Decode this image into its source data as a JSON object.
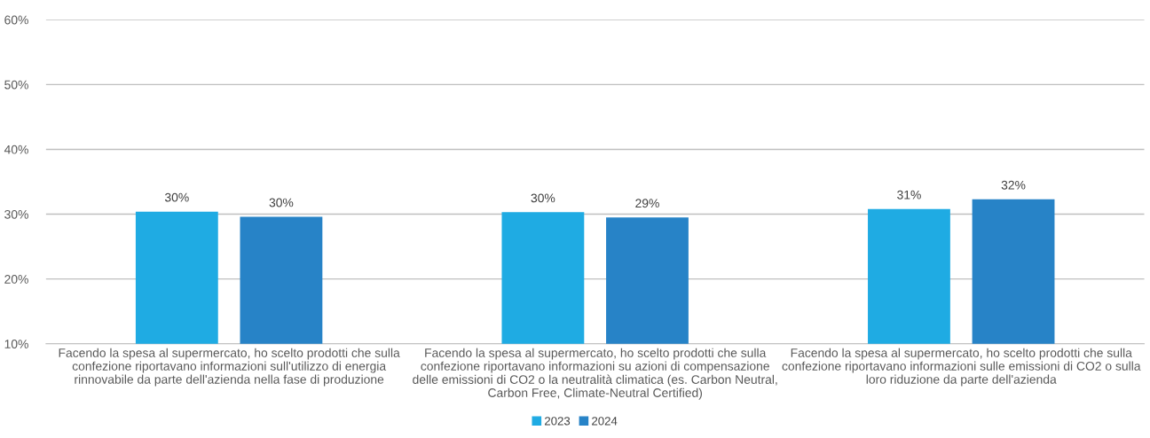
{
  "chart_data": {
    "type": "bar",
    "categories": [
      "Facendo la spesa al supermercato, ho scelto prodotti che sulla\nconfezione riportavano informazioni sull'utilizzo di energia\nrinnovabile da parte dell'azienda nella fase di produzione",
      "Facendo la spesa al supermercato, ho scelto prodotti che sulla\nconfezione riportavano informazioni su azioni di compensazione\ndelle emissioni di CO2 o la neutralità climatica (es. Carbon Neutral,\nCarbon Free, Climate-Neutral Certified)",
      "Facendo la spesa al supermercato, ho scelto prodotti che sulla\nconfezione riportavano informazioni sulle emissioni di CO2 o sulla\nloro riduzione da parte dell'azienda"
    ],
    "series": [
      {
        "name": "2023",
        "color": "#1fabe3",
        "values": [
          30.4,
          30.3,
          30.8
        ],
        "value_labels": [
          "30%",
          "30%",
          "31%"
        ]
      },
      {
        "name": "2024",
        "color": "#2783c7",
        "values": [
          29.6,
          29.5,
          32.3
        ],
        "value_labels": [
          "30%",
          "29%",
          "32%"
        ]
      }
    ],
    "ylim": [
      10,
      60
    ],
    "yticks": [
      {
        "value": 10,
        "label": "10%"
      },
      {
        "value": 20,
        "label": "20%"
      },
      {
        "value": 30,
        "label": "30%"
      },
      {
        "value": 40,
        "label": "40%"
      },
      {
        "value": 50,
        "label": "50%"
      },
      {
        "value": 60,
        "label": "60%"
      }
    ],
    "grid": "y",
    "legend": "bottom"
  }
}
